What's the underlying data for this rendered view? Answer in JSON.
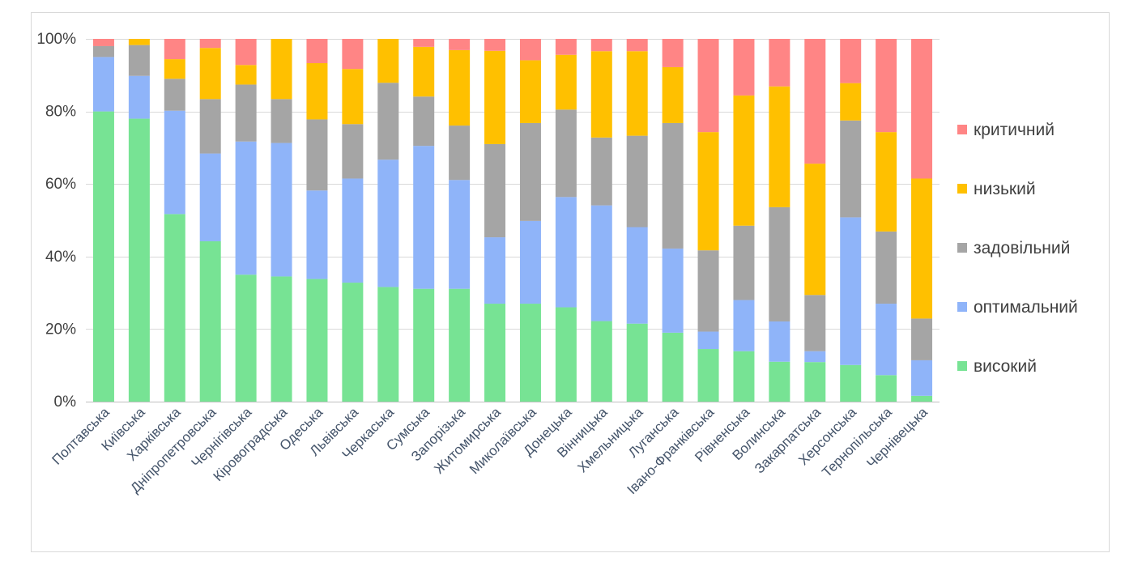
{
  "chart_data": {
    "type": "bar",
    "stacked": true,
    "percent": true,
    "title": "",
    "xlabel": "",
    "ylabel": "",
    "ylim": [
      0,
      100
    ],
    "yticks": [
      "0%",
      "20%",
      "40%",
      "60%",
      "80%",
      "100%"
    ],
    "grid": true,
    "legend_position": "right",
    "categories": [
      "Полтавська",
      "Київська",
      "Харківська",
      "Дніпропетровська",
      "Чернігівська",
      "Кіровоградська",
      "Одеська",
      "Львівська",
      "Черкаська",
      "Сумська",
      "Запорізька",
      "Житомирська",
      "Миколаївська",
      "Донецька",
      "Вінницька",
      "Хмельницька",
      "Луганська",
      "Івано-Франківська",
      "Рівненська",
      "Волинська",
      "Закарпатська",
      "Херсонська",
      "Тернопільська",
      "Чернівецька"
    ],
    "series": [
      {
        "name": "високий",
        "color": "#77e394",
        "values": [
          80,
          78,
          51.7,
          44.2,
          35,
          34.5,
          33.8,
          32.8,
          31.6,
          31.1,
          31.1,
          27,
          27,
          26,
          22.2,
          21.5,
          19,
          14.5,
          13.9,
          11,
          10.9,
          10.1,
          7.3,
          1.6
        ]
      },
      {
        "name": "оптимальний",
        "color": "#8fb4f9",
        "values": [
          15,
          11.8,
          28.5,
          24.2,
          36.7,
          36.8,
          24.4,
          28.7,
          35.1,
          39.4,
          30,
          18.3,
          22.8,
          30.4,
          31.9,
          26.6,
          23.2,
          4.8,
          14.1,
          11.1,
          3,
          40.7,
          19.7,
          9.8
        ]
      },
      {
        "name": "задовільний",
        "color": "#a5a5a5",
        "values": [
          3,
          8.5,
          8.8,
          15,
          15.7,
          12.1,
          19.6,
          15,
          21.2,
          13.6,
          15,
          25.7,
          27,
          24.1,
          18.7,
          25.2,
          34.6,
          22.4,
          20.5,
          31.5,
          15.5,
          26.7,
          19.9,
          11.5
        ]
      },
      {
        "name": "низький",
        "color": "#ffc000",
        "values": [
          0,
          1.7,
          5.4,
          14.1,
          5.4,
          16.6,
          15.5,
          15.2,
          12.1,
          13.7,
          20.8,
          25.7,
          17.3,
          15.1,
          23.8,
          23.3,
          15.4,
          32.6,
          35.9,
          33.3,
          36.2,
          10.3,
          27.4,
          38.6
        ]
      },
      {
        "name": "критичний",
        "color": "#ff8585",
        "values": [
          2,
          0,
          5.6,
          2.5,
          7.2,
          0,
          6.7,
          8.3,
          0,
          2.2,
          3.1,
          3.3,
          5.9,
          4.4,
          3.4,
          3.4,
          7.8,
          25.7,
          15.6,
          13.1,
          34.4,
          12.2,
          25.7,
          38.5
        ]
      }
    ]
  }
}
